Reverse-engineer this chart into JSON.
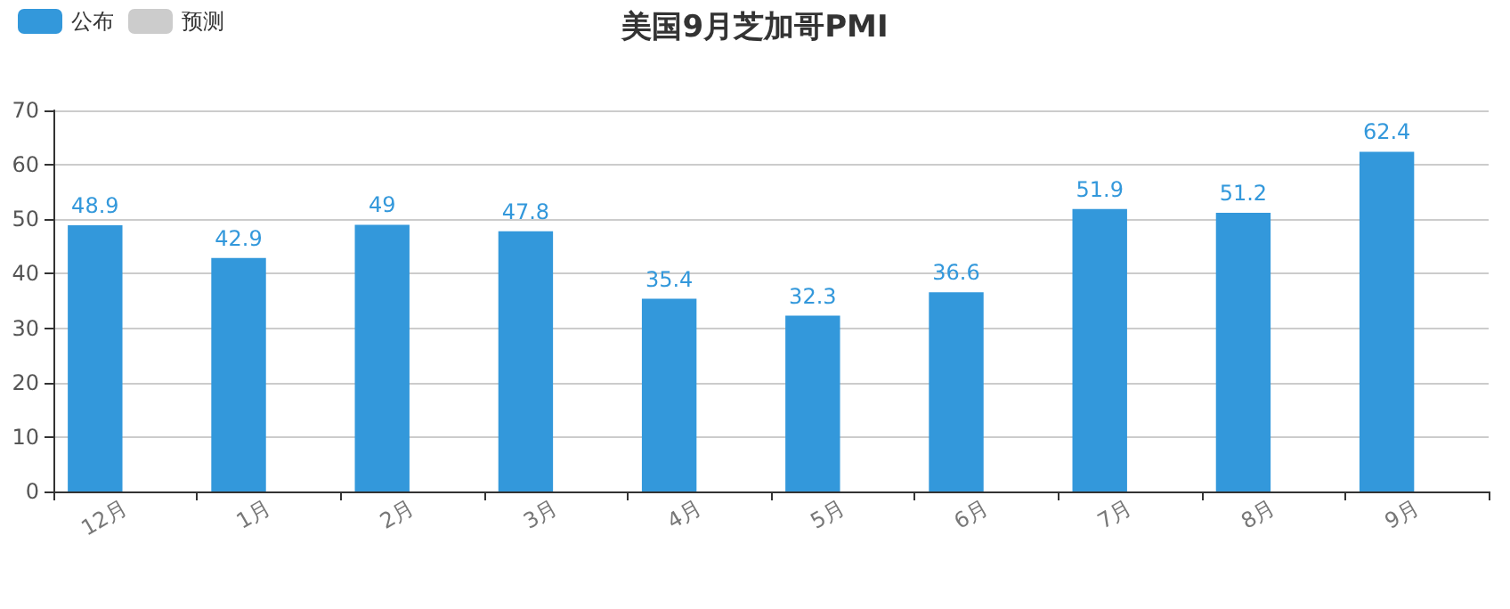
{
  "chart_data": {
    "type": "bar",
    "title": "美国9月芝加哥PMI",
    "categories": [
      "12月",
      "1月",
      "2月",
      "3月",
      "4月",
      "5月",
      "6月",
      "7月",
      "8月",
      "9月"
    ],
    "series": [
      {
        "name": "公布",
        "color": "#3398db",
        "values": [
          48.9,
          42.9,
          49,
          47.8,
          35.4,
          32.3,
          36.6,
          51.9,
          51.2,
          62.4
        ]
      },
      {
        "name": "预测",
        "color": "#cccccc",
        "values": [
          null,
          null,
          null,
          null,
          null,
          null,
          null,
          null,
          null,
          null
        ]
      }
    ],
    "ylim": [
      0,
      70
    ],
    "yticks": [
      0,
      10,
      20,
      30,
      40,
      50,
      60,
      70
    ],
    "grid": "y",
    "legend": "top left",
    "data_labels": true
  }
}
